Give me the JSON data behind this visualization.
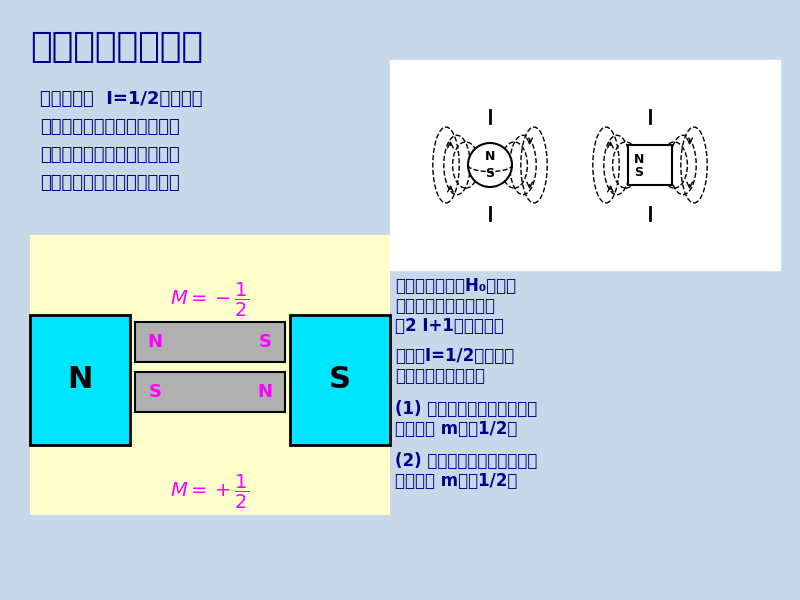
{
  "title": "二、核磁共振现象",
  "title_color": "#00008B",
  "bg_color": "#c8d8e8",
  "left_text_lines": [
    "自旋量子数  I=1/2的原子核",
    "（氢核），可当作电荷均匀分",
    "布的球体，绕自旋轴转动时，",
    "产生磁场，类似一个小磁铁。"
  ],
  "left_text_color": "#00008B",
  "right_text_lines": [
    [
      "当置于外加磁场H",
      "0",
      "中时，"
    ],
    [
      "相对于外磁场，可以有"
    ],
    [
      "（2 I+1）种取向："
    ],
    [
      ""
    ],
    [
      "氢核（I=1/2），两种"
    ],
    [
      "取向（两个能级）："
    ],
    [
      ""
    ],
    [
      "(1) 与外磁场平行，能量低，"
    ],
    [
      "磁量子数 m＝＋1/2；"
    ],
    [
      ""
    ],
    [
      "(2) 与外磁场相反，能量高，"
    ],
    [
      "磁量子数 m＝－1/2；"
    ]
  ],
  "right_text_color": "#00008B",
  "diagram_bg": "#ffffcc",
  "cyan_color": "#00e5ff",
  "gray_color": "#b0b0b0",
  "magenta_color": "#ff00ff",
  "magnet_text_color": "#000000",
  "diagram_magenta_text": "#ff00ff"
}
